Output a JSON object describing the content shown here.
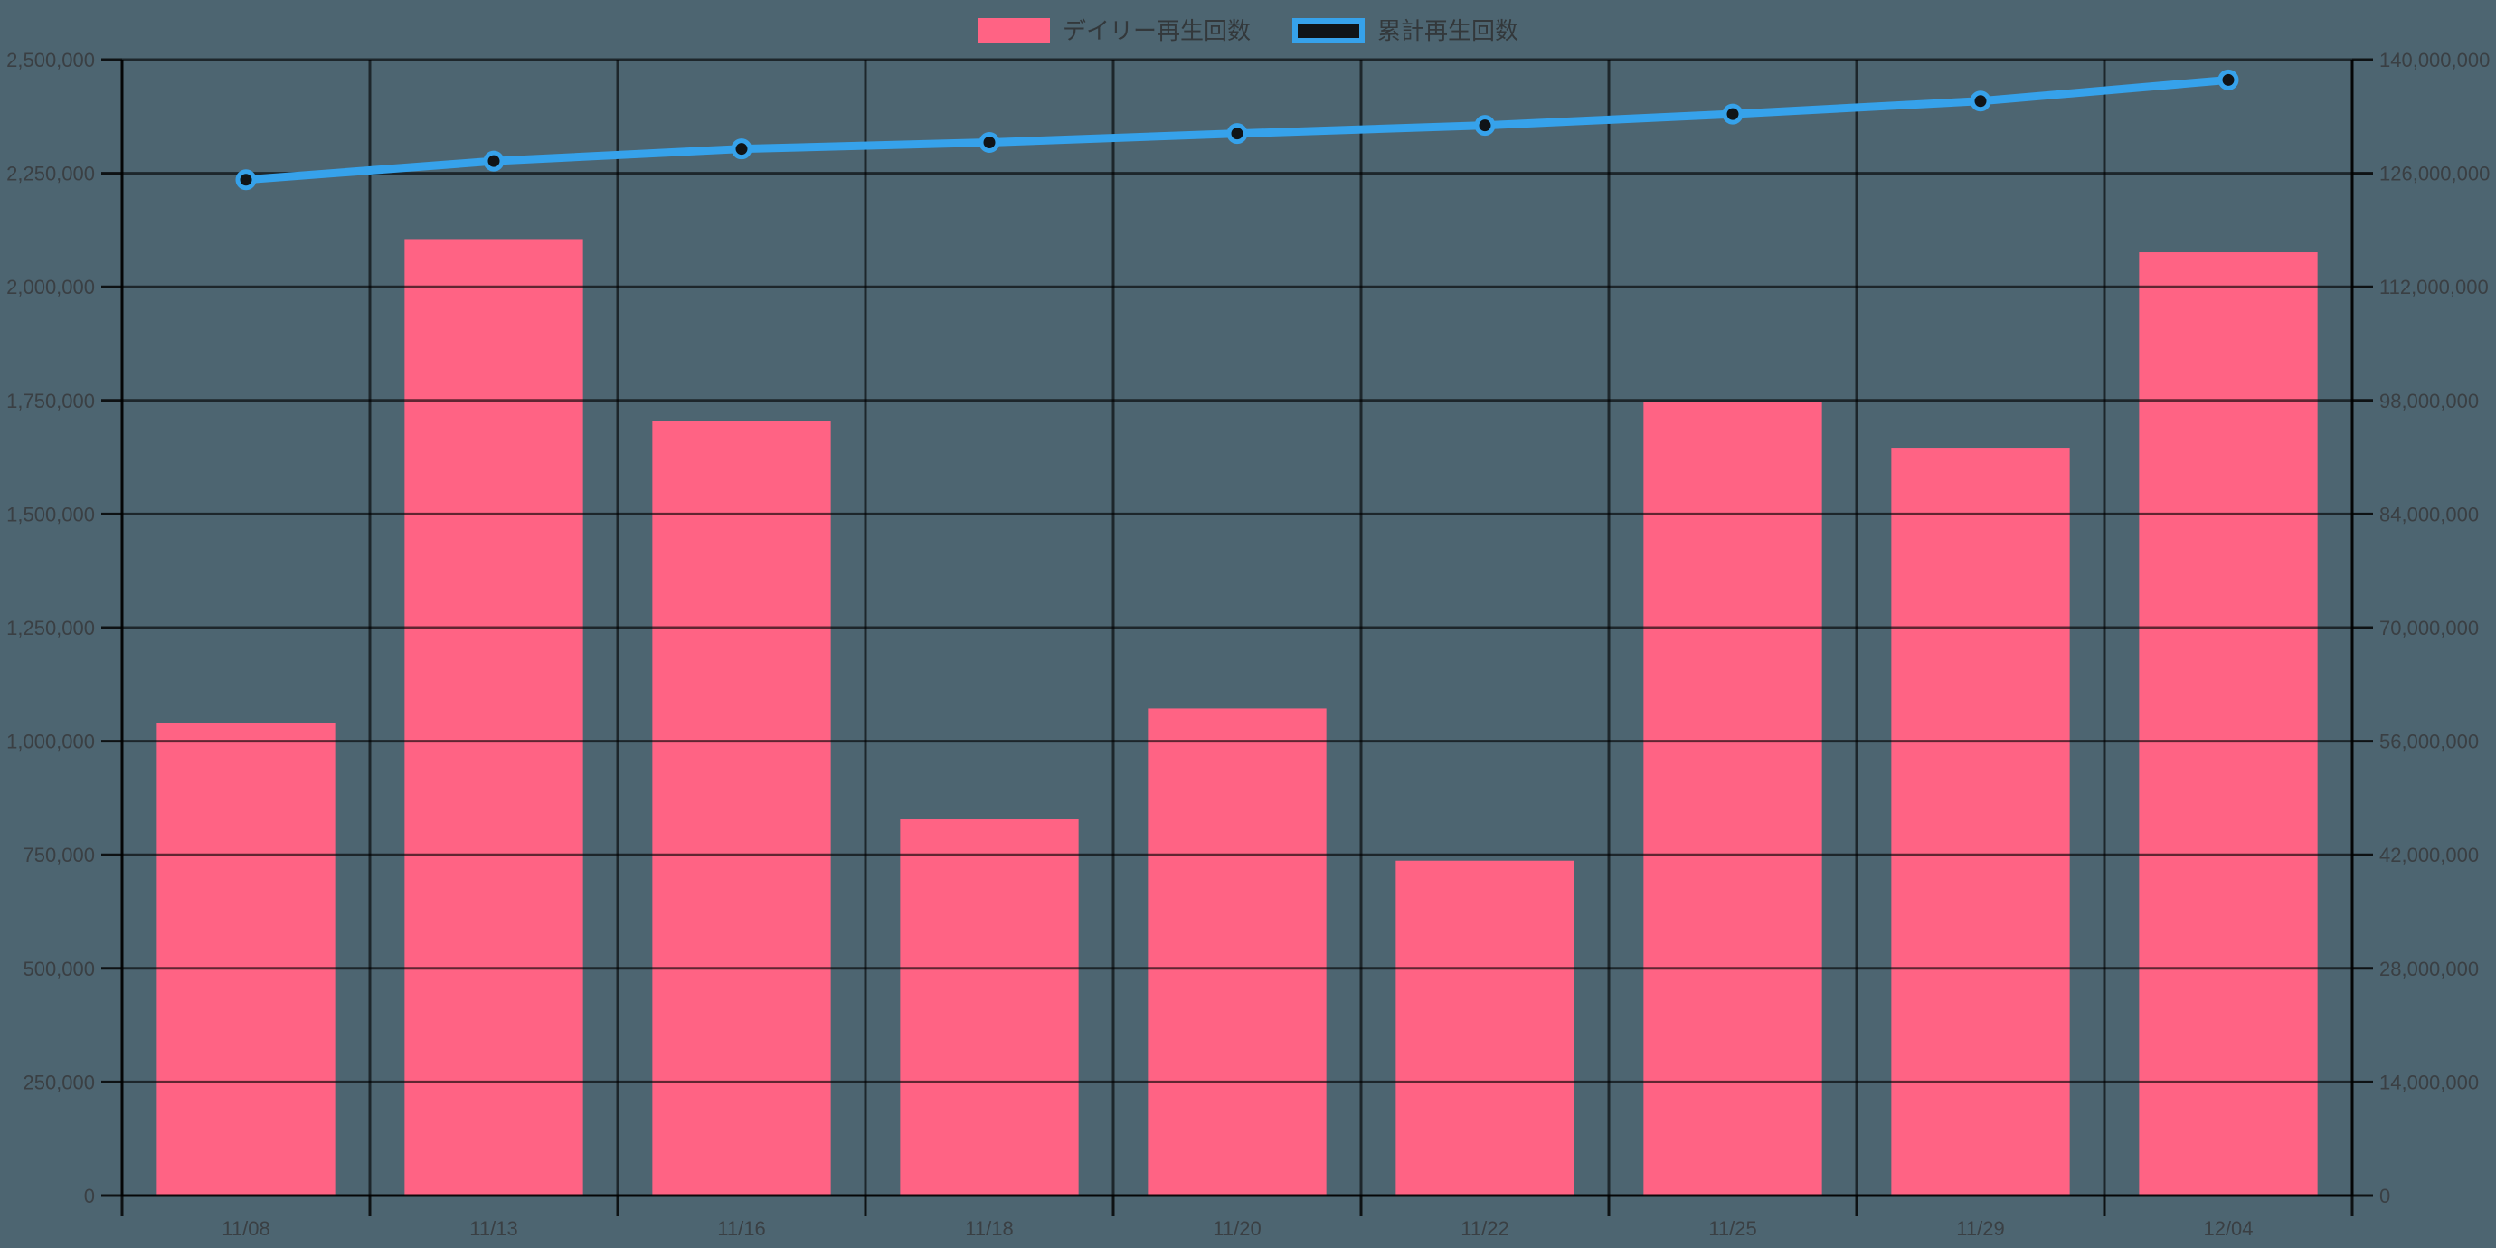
{
  "chart_data": {
    "type": "bar",
    "subtype": "bar-line-combo",
    "title": "",
    "legend_position": "top",
    "grid": true,
    "categories": [
      "11/08",
      "11/13",
      "11/16",
      "11/18",
      "11/20",
      "11/22",
      "11/25",
      "11/29",
      "12/04"
    ],
    "series": [
      {
        "name": "デイリー再生回数",
        "type": "bar",
        "yaxis": "left",
        "values": [
          1040000,
          2105000,
          1705000,
          828000,
          1072000,
          737000,
          1747000,
          1646000,
          2076000
        ]
      },
      {
        "name": "累計再生回数",
        "type": "line",
        "yaxis": "right",
        "values": [
          125200000,
          127500000,
          129000000,
          129800000,
          130900000,
          131900000,
          133300000,
          134900000,
          137500000
        ]
      }
    ],
    "left_axis": {
      "min": 0,
      "max": 2500000,
      "step": 250000,
      "tick_labels": [
        "0",
        "250,000",
        "500,000",
        "750,000",
        "1,000,000",
        "1,250,000",
        "1,500,000",
        "1,750,000",
        "2,000,000",
        "2,250,000",
        "2,500,000"
      ]
    },
    "right_axis": {
      "min": 0,
      "max": 140000000,
      "step": 14000000,
      "tick_labels": [
        "0",
        "14,000,000",
        "28,000,000",
        "42,000,000",
        "56,000,000",
        "70,000,000",
        "84,000,000",
        "98,000,000",
        "112,000,000",
        "126,000,000",
        "140,000,000"
      ]
    },
    "xlabel": "",
    "ylabel_left": "",
    "ylabel_right": ""
  },
  "colors": {
    "background": "#4D6571",
    "bar": "#FF6384",
    "line": "#36A2EB",
    "line_point_fill": "#101417",
    "grid": "rgba(0,0,0,0.62)",
    "axis_line": "rgba(0,0,0,0.82)",
    "tick_text": "#3A3F43",
    "legend_text": "#33383B",
    "legend_line_box_fill": "#101417"
  }
}
